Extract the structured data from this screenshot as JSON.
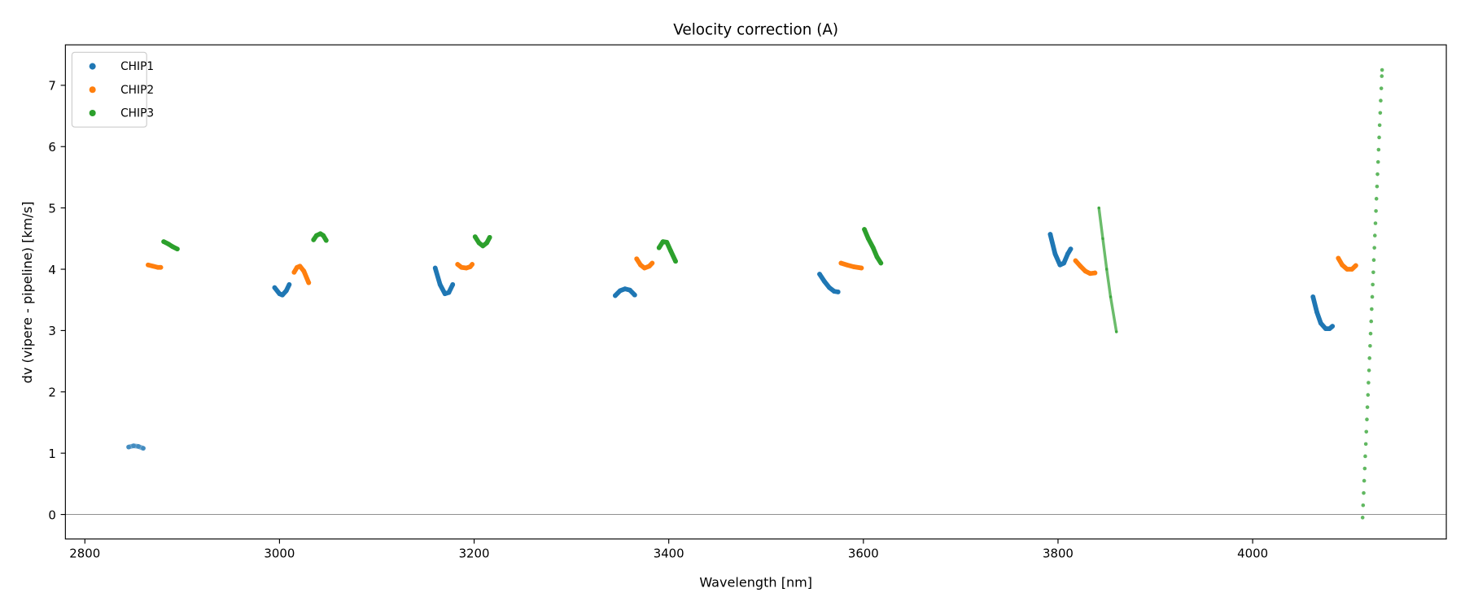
{
  "chart_data": {
    "type": "scatter",
    "title": "Velocity correction (A)",
    "xlabel": "Wavelength [nm]",
    "ylabel": "dv (vipere - pipeline) [km/s]",
    "xlim": [
      2780,
      4199
    ],
    "ylim": [
      -0.4,
      7.66
    ],
    "xticks": [
      2800,
      3000,
      3200,
      3400,
      3600,
      3800,
      4000
    ],
    "yticks": [
      0,
      1,
      2,
      3,
      4,
      5,
      6,
      7
    ],
    "grid": false,
    "legend_position": "top-left",
    "reference_line_y": 0,
    "series": [
      {
        "name": "CHIP1",
        "color": "#1f77b4",
        "segments": [
          {
            "alpha": 0.6,
            "points": [
              [
                2845,
                1.1
              ],
              [
                2850,
                1.12
              ],
              [
                2855,
                1.11
              ],
              [
                2860,
                1.08
              ]
            ]
          },
          {
            "points": [
              [
                2995,
                3.7
              ],
              [
                3000,
                3.6
              ],
              [
                3003,
                3.58
              ],
              [
                3007,
                3.65
              ],
              [
                3010,
                3.75
              ]
            ]
          },
          {
            "points": [
              [
                3160,
                4.02
              ],
              [
                3165,
                3.75
              ],
              [
                3170,
                3.6
              ],
              [
                3174,
                3.62
              ],
              [
                3178,
                3.75
              ]
            ]
          },
          {
            "points": [
              [
                3345,
                3.57
              ],
              [
                3350,
                3.65
              ],
              [
                3355,
                3.68
              ],
              [
                3360,
                3.66
              ],
              [
                3365,
                3.58
              ]
            ]
          },
          {
            "points": [
              [
                3555,
                3.92
              ],
              [
                3560,
                3.8
              ],
              [
                3565,
                3.7
              ],
              [
                3570,
                3.64
              ],
              [
                3574,
                3.63
              ]
            ]
          },
          {
            "points": [
              [
                3792,
                4.57
              ],
              [
                3797,
                4.25
              ],
              [
                3802,
                4.07
              ],
              [
                3806,
                4.1
              ],
              [
                3810,
                4.25
              ],
              [
                3813,
                4.33
              ]
            ]
          },
          {
            "points": [
              [
                4062,
                3.55
              ],
              [
                4066,
                3.3
              ],
              [
                4070,
                3.12
              ],
              [
                4075,
                3.03
              ],
              [
                4079,
                3.03
              ],
              [
                4082,
                3.07
              ]
            ]
          }
        ]
      },
      {
        "name": "CHIP2",
        "color": "#ff7f0e",
        "segments": [
          {
            "points": [
              [
                2865,
                4.07
              ],
              [
                2870,
                4.05
              ],
              [
                2875,
                4.03
              ],
              [
                2878,
                4.03
              ]
            ]
          },
          {
            "points": [
              [
                3015,
                3.95
              ],
              [
                3018,
                4.03
              ],
              [
                3021,
                4.05
              ],
              [
                3025,
                3.97
              ],
              [
                3030,
                3.78
              ]
            ]
          },
          {
            "points": [
              [
                3183,
                4.08
              ],
              [
                3187,
                4.03
              ],
              [
                3192,
                4.02
              ],
              [
                3196,
                4.04
              ],
              [
                3198,
                4.08
              ]
            ]
          },
          {
            "points": [
              [
                3367,
                4.17
              ],
              [
                3371,
                4.07
              ],
              [
                3375,
                4.02
              ],
              [
                3380,
                4.05
              ],
              [
                3383,
                4.1
              ]
            ]
          },
          {
            "points": [
              [
                3577,
                4.1
              ],
              [
                3583,
                4.07
              ],
              [
                3590,
                4.04
              ],
              [
                3598,
                4.02
              ]
            ]
          },
          {
            "points": [
              [
                3818,
                4.14
              ],
              [
                3823,
                4.05
              ],
              [
                3828,
                3.97
              ],
              [
                3833,
                3.93
              ],
              [
                3838,
                3.94
              ]
            ]
          },
          {
            "points": [
              [
                4088,
                4.18
              ],
              [
                4092,
                4.07
              ],
              [
                4097,
                4.0
              ],
              [
                4102,
                4.0
              ],
              [
                4106,
                4.06
              ]
            ]
          }
        ]
      },
      {
        "name": "CHIP3",
        "color": "#2ca02c",
        "segments": [
          {
            "points": [
              [
                2881,
                4.45
              ],
              [
                2886,
                4.41
              ],
              [
                2890,
                4.37
              ],
              [
                2895,
                4.33
              ]
            ]
          },
          {
            "points": [
              [
                3035,
                4.48
              ],
              [
                3038,
                4.55
              ],
              [
                3042,
                4.58
              ],
              [
                3045,
                4.55
              ],
              [
                3048,
                4.47
              ]
            ]
          },
          {
            "points": [
              [
                3201,
                4.53
              ],
              [
                3205,
                4.43
              ],
              [
                3209,
                4.38
              ],
              [
                3213,
                4.43
              ],
              [
                3216,
                4.52
              ]
            ]
          },
          {
            "points": [
              [
                3390,
                4.35
              ],
              [
                3394,
                4.45
              ],
              [
                3398,
                4.44
              ],
              [
                3402,
                4.3
              ],
              [
                3407,
                4.13
              ]
            ]
          },
          {
            "points": [
              [
                3601,
                4.65
              ],
              [
                3605,
                4.5
              ],
              [
                3610,
                4.35
              ],
              [
                3614,
                4.2
              ],
              [
                3618,
                4.1
              ]
            ]
          },
          {
            "alpha": 0.7,
            "thin": true,
            "points": [
              [
                3842,
                5.0
              ],
              [
                3846,
                4.5
              ],
              [
                3850,
                4.0
              ],
              [
                3854,
                3.55
              ],
              [
                3860,
                2.98
              ]
            ]
          },
          {
            "alpha": 0.75,
            "sparse": true,
            "points": [
              [
                4113.0,
                -0.05
              ],
              [
                4113.5,
                0.15
              ],
              [
                4114.1,
                0.35
              ],
              [
                4114.6,
                0.55
              ],
              [
                4115.2,
                0.75
              ],
              [
                4115.7,
                0.95
              ],
              [
                4116.3,
                1.15
              ],
              [
                4116.8,
                1.35
              ],
              [
                4117.4,
                1.55
              ],
              [
                4117.9,
                1.75
              ],
              [
                4118.5,
                1.95
              ],
              [
                4119.0,
                2.15
              ],
              [
                4119.6,
                2.35
              ],
              [
                4120.1,
                2.55
              ],
              [
                4120.7,
                2.75
              ],
              [
                4121.2,
                2.95
              ],
              [
                4121.8,
                3.15
              ],
              [
                4122.3,
                3.35
              ],
              [
                4122.9,
                3.55
              ],
              [
                4123.4,
                3.75
              ],
              [
                4124.0,
                3.95
              ],
              [
                4124.5,
                4.15
              ],
              [
                4125.1,
                4.35
              ],
              [
                4125.6,
                4.55
              ],
              [
                4126.2,
                4.75
              ],
              [
                4126.7,
                4.95
              ],
              [
                4127.2,
                5.15
              ],
              [
                4127.8,
                5.35
              ],
              [
                4128.3,
                5.55
              ],
              [
                4128.9,
                5.75
              ],
              [
                4129.4,
                5.95
              ],
              [
                4130.0,
                6.15
              ],
              [
                4130.5,
                6.35
              ],
              [
                4131.1,
                6.55
              ],
              [
                4131.6,
                6.75
              ],
              [
                4132.2,
                6.95
              ],
              [
                4132.7,
                7.15
              ],
              [
                4133.0,
                7.25
              ]
            ]
          }
        ]
      }
    ]
  }
}
